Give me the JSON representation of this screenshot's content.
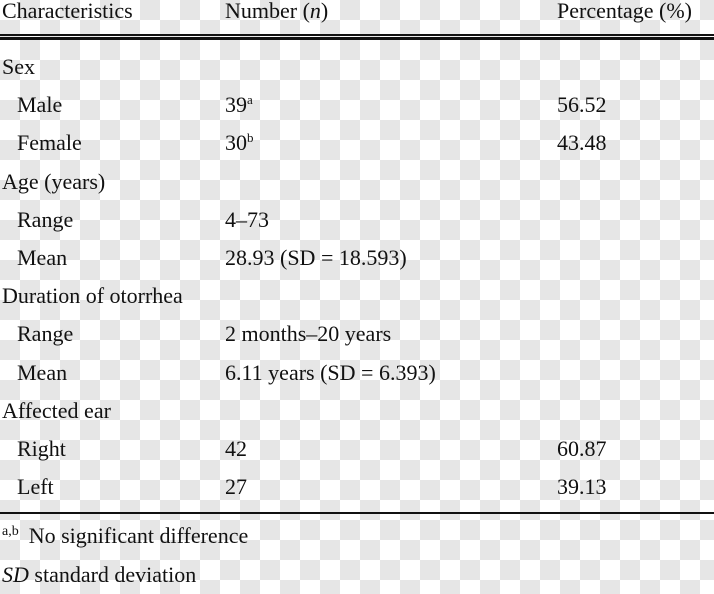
{
  "header": {
    "col1": "Characteristics",
    "col2_prefix": "Number (",
    "col2_italic": "n",
    "col2_suffix": ")",
    "col3": "Percentage (%)"
  },
  "rows": [
    {
      "label": "Sex",
      "indent": false,
      "number": "",
      "sup": "",
      "percentage": ""
    },
    {
      "label": "Male",
      "indent": true,
      "number": "39",
      "sup": "a",
      "percentage": "56.52"
    },
    {
      "label": "Female",
      "indent": true,
      "number": "30",
      "sup": "b",
      "percentage": "43.48"
    },
    {
      "label": "Age (years)",
      "indent": false,
      "number": "",
      "sup": "",
      "percentage": ""
    },
    {
      "label": "Range",
      "indent": true,
      "number": "4–73",
      "sup": "",
      "percentage": ""
    },
    {
      "label": "Mean",
      "indent": true,
      "number": "28.93 (SD = 18.593)",
      "sup": "",
      "percentage": ""
    },
    {
      "label": "Duration of otorrhea",
      "indent": false,
      "number": "",
      "sup": "",
      "percentage": ""
    },
    {
      "label": "Range",
      "indent": true,
      "number": "2 months–20 years",
      "sup": "",
      "percentage": ""
    },
    {
      "label": "Mean",
      "indent": true,
      "number": "6.11 years (SD = 6.393)",
      "sup": "",
      "percentage": ""
    },
    {
      "label": "Affected ear",
      "indent": false,
      "number": "",
      "sup": "",
      "percentage": ""
    },
    {
      "label": "Right",
      "indent": true,
      "number": "42",
      "sup": "",
      "percentage": "60.87"
    },
    {
      "label": "Left",
      "indent": true,
      "number": "27",
      "sup": "",
      "percentage": "39.13"
    }
  ],
  "footnotes": {
    "note1_mark": "a,b",
    "note1_text": "No significant difference",
    "note2_abbr": "SD",
    "note2_text": " standard deviation"
  }
}
